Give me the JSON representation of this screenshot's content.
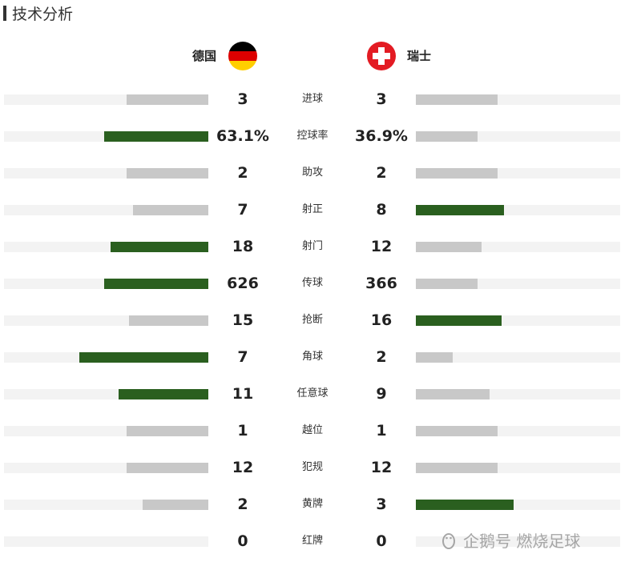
{
  "title": "技术分析",
  "teams": {
    "home": {
      "name": "德国",
      "flag_icon": "germany-flag-icon"
    },
    "away": {
      "name": "瑞士",
      "flag_icon": "switzerland-flag-icon"
    }
  },
  "colors": {
    "leader": "#2a5f1f",
    "other": "#c8c8c8",
    "track": "#f3f3f3"
  },
  "chart_data": {
    "type": "bar",
    "title": "技术分析",
    "series": [
      {
        "name": "德国",
        "values": [
          "3",
          "63.1%",
          "2",
          "7",
          "18",
          "626",
          "15",
          "7",
          "11",
          "1",
          "12",
          "2",
          "0"
        ]
      },
      {
        "name": "瑞士",
        "values": [
          "3",
          "36.9%",
          "2",
          "8",
          "12",
          "366",
          "16",
          "2",
          "9",
          "1",
          "12",
          "3",
          "0"
        ]
      }
    ],
    "categories": [
      "进球",
      "控球率",
      "助攻",
      "射正",
      "射门",
      "传球",
      "抢断",
      "角球",
      "任意球",
      "越位",
      "犯规",
      "黄牌",
      "红牌"
    ],
    "stats": [
      {
        "label": "进球",
        "home": "3",
        "away": "3",
        "home_fill": 0.4,
        "away_fill": 0.4,
        "leader": "none"
      },
      {
        "label": "控球率",
        "home": "63.1%",
        "away": "36.9%",
        "home_fill": 0.51,
        "away_fill": 0.3,
        "leader": "home"
      },
      {
        "label": "助攻",
        "home": "2",
        "away": "2",
        "home_fill": 0.4,
        "away_fill": 0.4,
        "leader": "none"
      },
      {
        "label": "射正",
        "home": "7",
        "away": "8",
        "home_fill": 0.37,
        "away_fill": 0.43,
        "leader": "away"
      },
      {
        "label": "射门",
        "home": "18",
        "away": "12",
        "home_fill": 0.48,
        "away_fill": 0.32,
        "leader": "home"
      },
      {
        "label": "传球",
        "home": "626",
        "away": "366",
        "home_fill": 0.51,
        "away_fill": 0.3,
        "leader": "home"
      },
      {
        "label": "抢断",
        "home": "15",
        "away": "16",
        "home_fill": 0.39,
        "away_fill": 0.42,
        "leader": "away"
      },
      {
        "label": "角球",
        "home": "7",
        "away": "2",
        "home_fill": 0.63,
        "away_fill": 0.18,
        "leader": "home"
      },
      {
        "label": "任意球",
        "home": "11",
        "away": "9",
        "home_fill": 0.44,
        "away_fill": 0.36,
        "leader": "home"
      },
      {
        "label": "越位",
        "home": "1",
        "away": "1",
        "home_fill": 0.4,
        "away_fill": 0.4,
        "leader": "none"
      },
      {
        "label": "犯规",
        "home": "12",
        "away": "12",
        "home_fill": 0.4,
        "away_fill": 0.4,
        "leader": "none"
      },
      {
        "label": "黄牌",
        "home": "2",
        "away": "3",
        "home_fill": 0.32,
        "away_fill": 0.48,
        "leader": "away"
      },
      {
        "label": "红牌",
        "home": "0",
        "away": "0",
        "home_fill": 0,
        "away_fill": 0,
        "leader": "none"
      }
    ]
  },
  "watermark": {
    "text": "企鹅号 燃烧足球",
    "icon": "penguin-logo-icon"
  }
}
